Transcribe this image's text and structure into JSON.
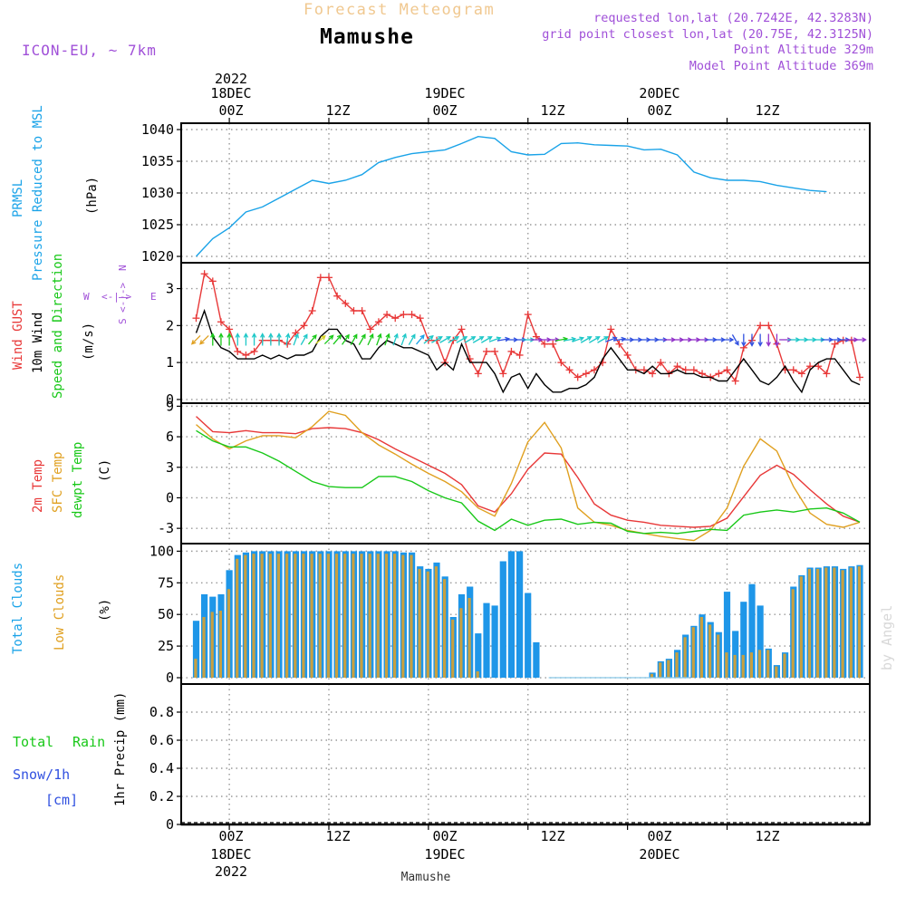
{
  "header": {
    "forecast_title": "Forecast Meteogram",
    "location": "Mamushe",
    "model": "ICON-EU, ~ 7km",
    "requested": "requested lon,lat (20.7242E, 42.3283N)",
    "grid_point": "grid point closest lon,lat (20.75E, 42.3125N)",
    "point_altitude": "Point Altitude 329m",
    "model_altitude": "Model Point Altitude 369m",
    "watermark": "by Angel",
    "bottom_location": "Mamushe"
  },
  "time_axis": {
    "top_ticks": [
      "00Z",
      "12Z",
      "00Z",
      "12Z",
      "00Z",
      "12Z"
    ],
    "bottom_ticks": [
      "00Z",
      "12Z",
      "00Z",
      "12Z",
      "00Z",
      "12Z"
    ],
    "top_dates": [
      "18DEC",
      "19DEC",
      "20DEC"
    ],
    "bottom_dates": [
      "18DEC",
      "19DEC",
      "20DEC"
    ],
    "year": "2022"
  },
  "panel_labels": {
    "pressure": [
      "PRMSL",
      "Pressure Reduced to MSL",
      "(hPa)"
    ],
    "wind": [
      "Wind GUST",
      "10m Wind",
      "Speed and Direction",
      "(m/s)"
    ],
    "compass": {
      "n": "N",
      "s": "S",
      "w": "W",
      "e": "E",
      "ns_axis": "<-|->",
      "we_axis": "<-|->"
    },
    "temp": [
      "2m Temp",
      "SFC Temp",
      "dewpt Temp",
      "(C)"
    ],
    "clouds": [
      "Total Clouds",
      "Low Clouds",
      "(%)"
    ],
    "precip": [
      "Total",
      "Rain",
      "Snow/1h",
      "[cm]",
      "1hr Precip (mm)"
    ]
  },
  "colors": {
    "pressure": "#1aa3e8",
    "gust": "#e83838",
    "wind": "#000000",
    "temp2m": "#e83838",
    "sfc": "#e0a020",
    "dewpt": "#18c818",
    "total_cloud": "#1e96e8",
    "low_cloud": "#c8a040",
    "label_cyan": "#1aa3e8",
    "label_red": "#e83838",
    "label_green": "#18c818",
    "label_orange": "#e0a020",
    "label_violet": "#a050d8",
    "label_blue": "#3050e0",
    "grid": "#999999"
  },
  "chart_data": [
    {
      "id": "pressure",
      "type": "line",
      "ylabel": "(hPa)",
      "ylim": [
        1019,
        1041
      ],
      "yticks": [
        "1020",
        "1025",
        "1030",
        "1035",
        "1040"
      ],
      "t_hours": [
        -4,
        -2,
        0,
        2,
        4,
        6,
        8,
        10,
        12,
        14,
        16,
        18,
        20,
        22,
        24,
        26,
        28,
        30,
        32,
        34,
        36,
        38,
        40,
        42,
        44,
        46,
        48,
        50,
        52,
        54,
        56,
        58,
        60,
        62,
        64,
        66,
        68,
        70,
        72
      ],
      "series": [
        {
          "name": "PRMSL",
          "values": [
            1020.0,
            1022.8,
            1024.5,
            1027.0,
            1027.8,
            1029.2,
            1030.6,
            1032.0,
            1031.5,
            1032.0,
            1032.9,
            1034.8,
            1035.6,
            1036.2,
            1036.5,
            1036.8,
            1037.8,
            1038.9,
            1038.6,
            1036.5,
            1036.0,
            1036.1,
            1037.8,
            1037.9,
            1037.6,
            1037.5,
            1037.4,
            1036.8,
            1036.9,
            1036.0,
            1033.3,
            1032.4,
            1032.0,
            1032.0,
            1031.8,
            1031.2,
            1030.8,
            1030.4,
            1030.2
          ]
        }
      ]
    },
    {
      "id": "wind",
      "type": "line",
      "ylabel": "(m/s)",
      "ylim": [
        -0.1,
        3.7
      ],
      "yticks": [
        "0",
        "1",
        "2",
        "3"
      ],
      "t_hours": [
        -4,
        -3,
        -2,
        -1,
        0,
        1,
        2,
        3,
        4,
        5,
        6,
        7,
        8,
        9,
        10,
        11,
        12,
        13,
        14,
        15,
        16,
        17,
        18,
        19,
        20,
        21,
        22,
        23,
        24,
        25,
        26,
        27,
        28,
        29,
        30,
        31,
        32,
        33,
        34,
        35,
        36,
        37,
        38,
        39,
        40,
        41,
        42,
        43,
        44,
        45,
        46,
        47,
        48,
        49,
        50,
        51,
        52,
        53,
        54,
        55,
        56,
        57,
        58,
        59,
        60,
        61,
        62,
        63,
        64,
        65,
        66,
        67,
        68,
        69,
        70,
        71,
        72,
        73,
        74,
        75,
        76
      ],
      "series": [
        {
          "name": "Wind GUST",
          "values": [
            2.2,
            3.4,
            3.2,
            2.1,
            1.9,
            1.3,
            1.2,
            1.3,
            1.6,
            1.6,
            1.6,
            1.5,
            1.8,
            2.0,
            2.4,
            3.3,
            3.3,
            2.8,
            2.6,
            2.4,
            2.4,
            1.9,
            2.1,
            2.3,
            2.2,
            2.3,
            2.3,
            2.2,
            1.6,
            1.6,
            1.0,
            1.6,
            1.9,
            1.1,
            0.7,
            1.3,
            1.3,
            0.7,
            1.3,
            1.2,
            2.3,
            1.7,
            1.5,
            1.5,
            1.0,
            0.8,
            0.6,
            0.7,
            0.8,
            1.0,
            1.9,
            1.5,
            1.2,
            0.8,
            0.8,
            0.7,
            1.0,
            0.7,
            0.9,
            0.8,
            0.8,
            0.7,
            0.6,
            0.7,
            0.8,
            0.5,
            1.4,
            1.6,
            2.0,
            2.0,
            1.5,
            0.8,
            0.8,
            0.7,
            0.9,
            0.9,
            0.7,
            1.5,
            1.6,
            1.6,
            0.6
          ]
        },
        {
          "name": "10m Wind",
          "values": [
            1.8,
            2.4,
            1.7,
            1.4,
            1.3,
            1.1,
            1.1,
            1.1,
            1.2,
            1.1,
            1.2,
            1.1,
            1.2,
            1.2,
            1.3,
            1.7,
            1.9,
            1.9,
            1.6,
            1.5,
            1.1,
            1.1,
            1.4,
            1.6,
            1.5,
            1.4,
            1.4,
            1.3,
            1.2,
            0.8,
            1.0,
            0.8,
            1.5,
            1.0,
            1.0,
            1.0,
            0.7,
            0.2,
            0.6,
            0.7,
            0.3,
            0.7,
            0.4,
            0.2,
            0.2,
            0.3,
            0.3,
            0.4,
            0.6,
            1.1,
            1.4,
            1.1,
            0.8,
            0.8,
            0.7,
            0.9,
            0.7,
            0.7,
            0.8,
            0.7,
            0.7,
            0.6,
            0.6,
            0.5,
            0.5,
            0.8,
            1.1,
            0.8,
            0.5,
            0.4,
            0.6,
            0.9,
            0.5,
            0.2,
            0.8,
            1.0,
            1.1,
            1.1,
            0.8,
            0.5,
            0.4
          ]
        }
      ],
      "arrows": {
        "t_hours": [
          -4,
          -3,
          -2,
          -1,
          0,
          1,
          2,
          3,
          4,
          5,
          6,
          7,
          8,
          9,
          10,
          11,
          12,
          13,
          14,
          15,
          16,
          17,
          18,
          19,
          20,
          21,
          22,
          23,
          24,
          25,
          26,
          27,
          28,
          29,
          30,
          31,
          32,
          33,
          34,
          35,
          36,
          37,
          38,
          39,
          40,
          41,
          42,
          43,
          44,
          45,
          46,
          47,
          48,
          49,
          50,
          51,
          52,
          53,
          54,
          55,
          56,
          57,
          58,
          59,
          60,
          61,
          62,
          63,
          64,
          65,
          66,
          67,
          68,
          69,
          70,
          71,
          72,
          73,
          74,
          75,
          76
        ],
        "direction_deg": [
          225,
          225,
          0,
          0,
          0,
          0,
          0,
          0,
          0,
          0,
          0,
          10,
          20,
          30,
          40,
          50,
          45,
          40,
          35,
          30,
          30,
          25,
          20,
          20,
          20,
          20,
          30,
          40,
          50,
          60,
          60,
          60,
          60,
          60,
          60,
          60,
          70,
          80,
          90,
          90,
          90,
          90,
          90,
          90,
          80,
          80,
          70,
          60,
          60,
          60,
          70,
          80,
          90,
          90,
          90,
          90,
          90,
          90,
          90,
          90,
          90,
          90,
          90,
          90,
          90,
          150,
          180,
          180,
          180,
          180,
          180,
          90,
          90,
          90,
          90,
          90,
          90,
          90,
          90,
          90,
          90
        ],
        "color": [
          "#e0a020",
          "#e0a020",
          "#18c818",
          "#18c818",
          "#18c818",
          "#1ec8c8",
          "#1ec8c8",
          "#1ec8c8",
          "#1ec8c8",
          "#1ec8c8",
          "#1ec8c8",
          "#1ec8c8",
          "#1ec8c8",
          "#1ec8c8",
          "#18c818",
          "#d4d420",
          "#18c818",
          "#18c818",
          "#18c818",
          "#18c818",
          "#18c818",
          "#18c818",
          "#18c818",
          "#18c818",
          "#1ec8c8",
          "#1ec8c8",
          "#1ec8c8",
          "#1aa3e8",
          "#1ec8c8",
          "#1ec8c8",
          "#1ec8c8",
          "#1ec8c8",
          "#1ec8c8",
          "#1ec8c8",
          "#1ec8c8",
          "#1ec8c8",
          "#1ec8c8",
          "#3050e0",
          "#3050e0",
          "#3050e0",
          "#1ec8c8",
          "#9030c8",
          "#9030c8",
          "#9030c8",
          "#18c818",
          "#1ec8c8",
          "#1ec8c8",
          "#1ec8c8",
          "#1ec8c8",
          "#1ec8c8",
          "#3050e0",
          "#3050e0",
          "#3050e0",
          "#3050e0",
          "#3050e0",
          "#3050e0",
          "#3050e0",
          "#9030c8",
          "#9030c8",
          "#9030c8",
          "#9030c8",
          "#9030c8",
          "#3050e0",
          "#3050e0",
          "#3050e0",
          "#3050e0",
          "#3050e0",
          "#3050e0",
          "#3050e0",
          "#9030c8",
          "#9030c8",
          "#9030c8",
          "#1ec8c8",
          "#1ec8c8",
          "#1ec8c8",
          "#1ec8c8",
          "#3050e0",
          "#3050e0",
          "#3050e0",
          "#9030c8",
          "#9030c8"
        ]
      }
    },
    {
      "id": "temp",
      "type": "line",
      "ylabel": "(C)",
      "ylim": [
        -4.5,
        9.3
      ],
      "yticks": [
        "-3",
        "0",
        "3",
        "6",
        "9"
      ],
      "t_hours": [
        -4,
        -2,
        0,
        2,
        4,
        6,
        8,
        10,
        12,
        14,
        16,
        18,
        20,
        22,
        24,
        26,
        28,
        30,
        32,
        34,
        36,
        38,
        40,
        42,
        44,
        46,
        48,
        50,
        52,
        54,
        56,
        58,
        60,
        62,
        64,
        66,
        68,
        70,
        72,
        74,
        76
      ],
      "series": [
        {
          "name": "2m Temp",
          "values": [
            8.0,
            6.5,
            6.4,
            6.6,
            6.4,
            6.4,
            6.3,
            6.8,
            6.9,
            6.8,
            6.4,
            5.7,
            4.8,
            4.0,
            3.2,
            2.4,
            1.3,
            -0.8,
            -1.4,
            0.4,
            2.8,
            4.4,
            4.3,
            2.0,
            -0.6,
            -1.7,
            -2.2,
            -2.4,
            -2.7,
            -2.8,
            -2.9,
            -2.8,
            -2.0,
            0.1,
            2.2,
            3.2,
            2.3,
            0.8,
            -0.6,
            -1.8,
            -2.4
          ]
        },
        {
          "name": "SFC Temp",
          "values": [
            7.2,
            5.8,
            4.8,
            5.6,
            6.1,
            6.1,
            5.9,
            7.0,
            8.5,
            8.1,
            6.4,
            5.2,
            4.3,
            3.3,
            2.4,
            1.6,
            0.6,
            -1.0,
            -1.8,
            1.4,
            5.5,
            7.4,
            4.9,
            -1.0,
            -2.4,
            -2.7,
            -3.2,
            -3.5,
            -3.8,
            -4.0,
            -4.2,
            -3.2,
            -1.0,
            3.1,
            5.8,
            4.6,
            1.1,
            -1.5,
            -2.6,
            -2.9,
            -2.4
          ]
        },
        {
          "name": "dewpt Temp",
          "values": [
            6.6,
            5.6,
            5.0,
            5.0,
            4.4,
            3.6,
            2.6,
            1.6,
            1.1,
            1.0,
            1.0,
            2.1,
            2.1,
            1.6,
            0.7,
            0.0,
            -0.5,
            -2.3,
            -3.2,
            -2.1,
            -2.7,
            -2.2,
            -2.1,
            -2.6,
            -2.4,
            -2.5,
            -3.3,
            -3.5,
            -3.4,
            -3.5,
            -3.3,
            -3.1,
            -3.2,
            -1.7,
            -1.4,
            -1.2,
            -1.4,
            -1.1,
            -1.0,
            -1.5,
            -2.4
          ]
        }
      ]
    },
    {
      "id": "clouds",
      "type": "bar",
      "ylabel": "(%)",
      "ylim": [
        -5,
        106
      ],
      "yticks": [
        "0",
        "25",
        "50",
        "75",
        "100"
      ],
      "t_hours": [
        -4,
        -3,
        -2,
        -1,
        0,
        1,
        2,
        3,
        4,
        5,
        6,
        7,
        8,
        9,
        10,
        11,
        12,
        13,
        14,
        15,
        16,
        17,
        18,
        19,
        20,
        21,
        22,
        23,
        24,
        25,
        26,
        27,
        28,
        29,
        30,
        31,
        32,
        33,
        34,
        35,
        36,
        37,
        38,
        39,
        40,
        41,
        42,
        43,
        44,
        45,
        46,
        47,
        48,
        49,
        50,
        51,
        52,
        53,
        54,
        55,
        56,
        57,
        58,
        59,
        60,
        61,
        62,
        63,
        64,
        65,
        66,
        67,
        68,
        69,
        70,
        71,
        72,
        73,
        74,
        75,
        76
      ],
      "series": [
        {
          "name": "Total Clouds",
          "values": [
            45,
            66,
            64,
            66,
            85,
            97,
            99,
            100,
            100,
            100,
            100,
            100,
            100,
            100,
            100,
            100,
            100,
            100,
            100,
            100,
            100,
            100,
            100,
            100,
            100,
            99,
            99,
            88,
            86,
            91,
            80,
            48,
            66,
            72,
            35,
            59,
            57,
            92,
            100,
            100,
            67,
            28,
            0,
            0,
            0,
            0,
            0,
            0,
            0,
            0,
            0,
            0,
            0,
            0,
            0,
            4,
            13,
            15,
            22,
            34,
            41,
            50,
            44,
            36,
            68,
            37,
            60,
            74,
            57,
            23,
            10,
            20,
            72,
            81,
            87,
            87,
            88,
            88,
            86,
            88,
            89
          ]
        },
        {
          "name": "Low Clouds",
          "values": [
            15,
            48,
            52,
            53,
            70,
            94,
            97,
            98,
            98,
            98,
            98,
            98,
            98,
            98,
            98,
            98,
            98,
            98,
            98,
            98,
            98,
            98,
            98,
            98,
            98,
            97,
            97,
            86,
            84,
            88,
            78,
            46,
            55,
            63,
            5,
            0,
            0,
            0,
            0,
            0,
            0,
            0,
            0,
            0,
            0,
            0,
            0,
            0,
            0,
            0,
            0,
            0,
            0,
            0,
            0,
            3,
            12,
            14,
            20,
            32,
            40,
            48,
            42,
            34,
            20,
            18,
            18,
            20,
            22,
            22,
            9,
            19,
            70,
            80,
            86,
            86,
            87,
            87,
            85,
            87,
            88
          ]
        }
      ]
    },
    {
      "id": "precip",
      "type": "bar",
      "ylabel": "1hr Precip (mm)",
      "ylim": [
        0,
        1.0
      ],
      "yticks": [
        "0",
        "0.2",
        "0.4",
        "0.6",
        "0.8"
      ],
      "series": [
        {
          "name": "Total Rain",
          "values": []
        }
      ]
    }
  ]
}
